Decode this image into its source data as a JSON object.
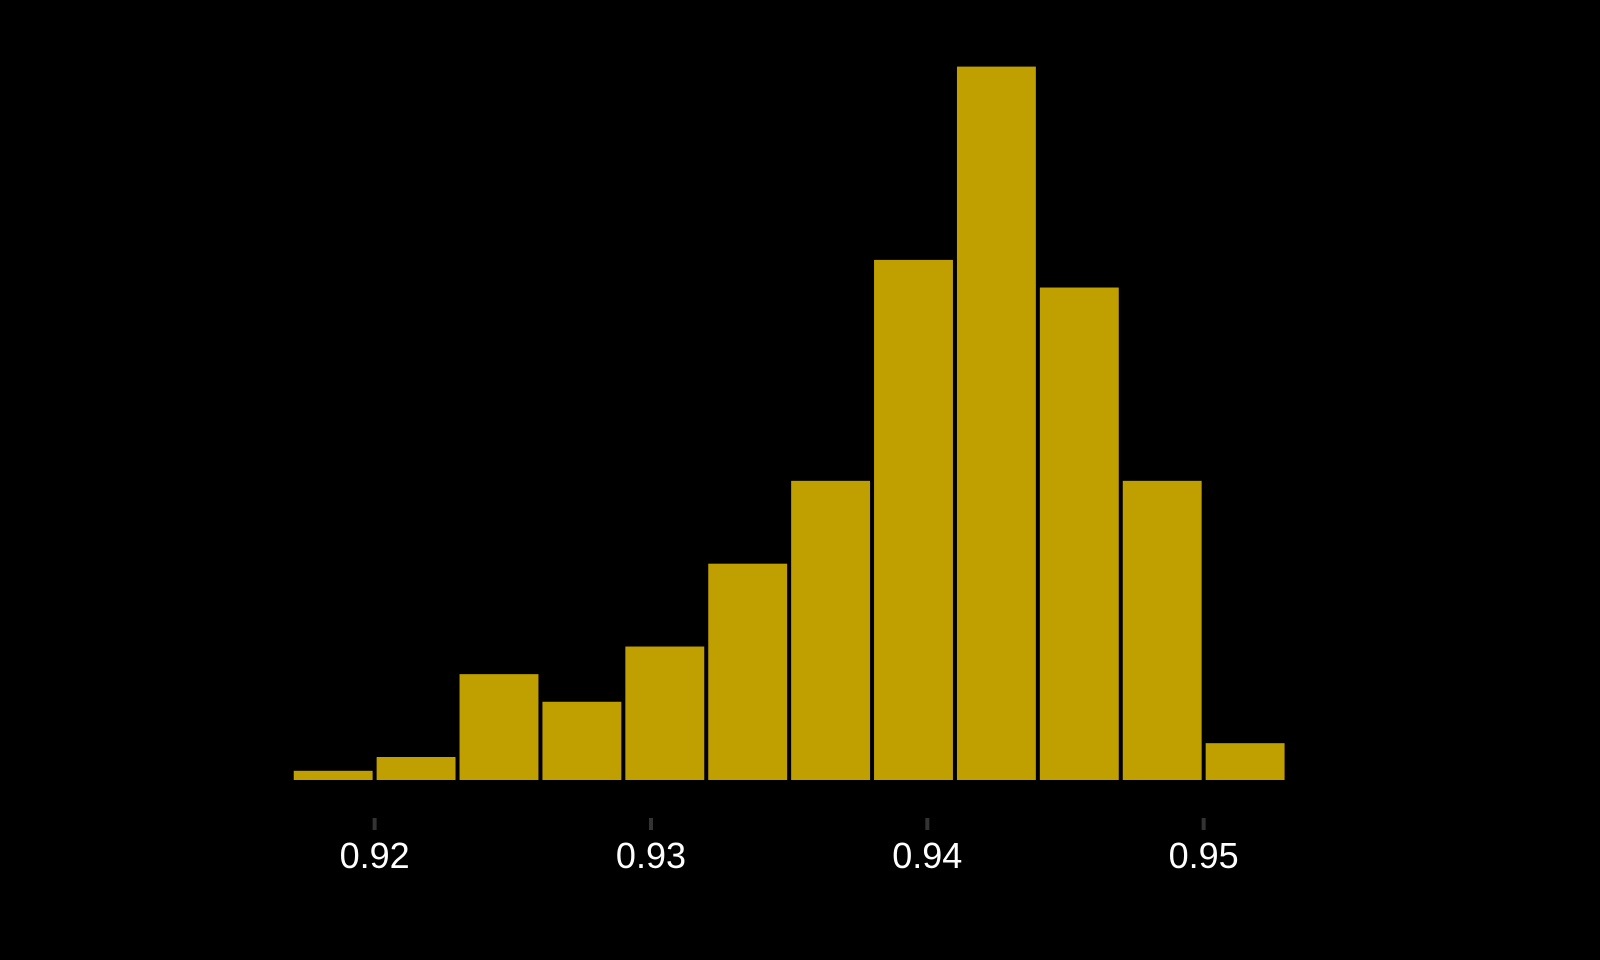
{
  "chart_data": {
    "type": "bar",
    "subtype": "histogram",
    "bin_width": 0.003,
    "bins": [
      {
        "x0": 0.917,
        "x1": 0.92,
        "count": 1
      },
      {
        "x0": 0.92,
        "x1": 0.923,
        "count": 2.5
      },
      {
        "x0": 0.923,
        "x1": 0.926,
        "count": 11.5
      },
      {
        "x0": 0.926,
        "x1": 0.929,
        "count": 8.5
      },
      {
        "x0": 0.929,
        "x1": 0.932,
        "count": 14.5
      },
      {
        "x0": 0.932,
        "x1": 0.935,
        "count": 23.5
      },
      {
        "x0": 0.935,
        "x1": 0.938,
        "count": 32.5
      },
      {
        "x0": 0.938,
        "x1": 0.941,
        "count": 56.5
      },
      {
        "x0": 0.941,
        "x1": 0.944,
        "count": 77.5
      },
      {
        "x0": 0.944,
        "x1": 0.947,
        "count": 53.5
      },
      {
        "x0": 0.947,
        "x1": 0.95,
        "count": 32.5
      },
      {
        "x0": 0.95,
        "x1": 0.953,
        "count": 4
      }
    ],
    "xlim": [
      0.9135,
      0.9562
    ],
    "ylim": [
      0,
      78
    ],
    "x_ticks": [
      0.92,
      0.93,
      0.94,
      0.95
    ],
    "x_tick_labels": [
      "0.92",
      "0.93",
      "0.94",
      "0.95"
    ],
    "y_axis_visible": false,
    "grid": false,
    "legend": "none",
    "bar_color": "#c09f00",
    "background_color": "#000000",
    "tick_mark_color": "#333333",
    "tick_label_color": "#ffffff"
  }
}
